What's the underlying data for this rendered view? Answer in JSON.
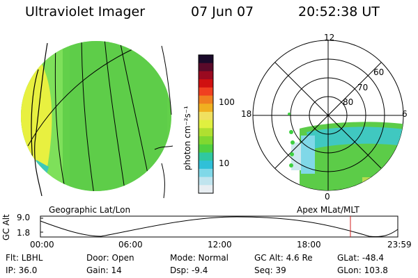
{
  "header": {
    "instrument": "Ultraviolet Imager",
    "date": "07 Jun 07",
    "time": "20:52:38 UT"
  },
  "geo_panel": {
    "label": "Geographic Lat/Lon"
  },
  "apex_panel": {
    "label": "Apex MLat/MLT",
    "mlt_labels": {
      "top": "12",
      "left": "18",
      "right": "6",
      "bottom": "0"
    },
    "lat_labels": [
      "60",
      "70",
      "80"
    ]
  },
  "colorbar": {
    "unit_label": "photon cm⁻²s⁻¹",
    "ticks": [
      "100",
      "10"
    ],
    "colors": [
      "#1a0a2a",
      "#5a0a2a",
      "#9a0a20",
      "#d01010",
      "#f04020",
      "#f08020",
      "#f0b020",
      "#f0e060",
      "#e0f040",
      "#b0e030",
      "#80d830",
      "#50d040",
      "#30c8a0",
      "#30c0d8",
      "#80d8e8",
      "#c0e4ee",
      "#e8eef2"
    ]
  },
  "altitude_plot": {
    "ylabel": "GC Alt",
    "yticks": [
      "9.0",
      "1.8"
    ],
    "xticks": [
      "00:00",
      "06:00",
      "12:00",
      "18:00",
      "23:59"
    ],
    "current_time_marker": "20:52"
  },
  "info": {
    "flt": "Flt: LBHL",
    "ip": "IP: 36.0",
    "door": "Door: Open",
    "gain": "Gain: 14",
    "mode": "Mode: Normal",
    "dsp": "Dsp:    -9.4",
    "gc_alt": "GC Alt: 4.6 Re",
    "seq": "Seq: 39",
    "glat": "GLat:  -48.4",
    "glon": "GLon: 103.8"
  }
}
